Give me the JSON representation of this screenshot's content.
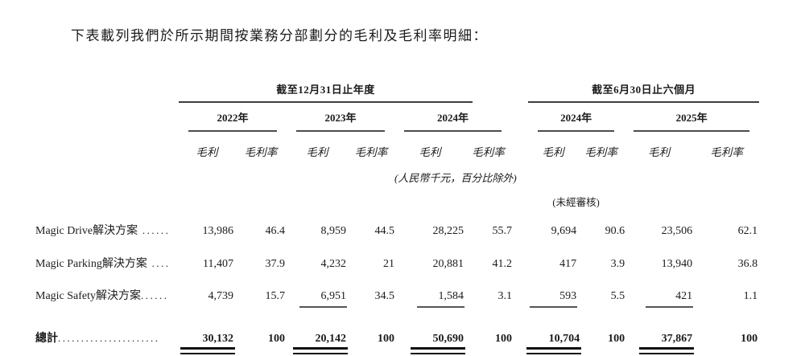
{
  "intro": "下表載列我們於所示期間按業務分部劃分的毛利及毛利率明細：",
  "table": {
    "period_groups": [
      {
        "label": "截至12月31日止年度"
      },
      {
        "label": "截至6月30日止六個月"
      }
    ],
    "years": [
      {
        "label": "2022年"
      },
      {
        "label": "2023年"
      },
      {
        "label": "2024年"
      },
      {
        "label": "2024年"
      },
      {
        "label": "2025年"
      }
    ],
    "col_headers": {
      "gross_profit": "毛利",
      "gross_margin": "毛利率"
    },
    "unit_note": "(人民幣千元，百分比除外)",
    "unaudited_note": "(未經審核)",
    "rows": [
      {
        "label": "Magic Drive解決方案",
        "leader": " ......",
        "values": [
          "13,986",
          "46.4",
          "8,959",
          "44.5",
          "28,225",
          "55.7",
          "9,694",
          "90.6",
          "23,506",
          "62.1"
        ]
      },
      {
        "label": "Magic Parking解決方案",
        "leader": " ....",
        "values": [
          "11,407",
          "37.9",
          "4,232",
          "21",
          "20,881",
          "41.2",
          "417",
          "3.9",
          "13,940",
          "36.8"
        ]
      },
      {
        "label": "Magic Safety解決方案",
        "leader": "......",
        "values": [
          "4,739",
          "15.7",
          "6,951",
          "34.5",
          "1,584",
          "3.1",
          "593",
          "5.5",
          "421",
          "1.1"
        ]
      }
    ],
    "total_row": {
      "label": "總計",
      "leader": "......................",
      "values": [
        "30,132",
        "100",
        "20,142",
        "100",
        "50,690",
        "100",
        "10,704",
        "100",
        "37,867",
        "100"
      ]
    }
  }
}
